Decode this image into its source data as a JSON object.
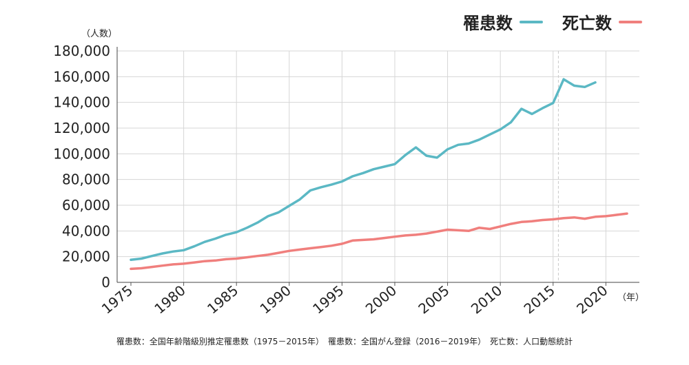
{
  "chart_data": {
    "type": "line",
    "ylim": [
      0,
      180000
    ],
    "xlim": [
      1975,
      2022
    ],
    "grid": true,
    "legend_position": "top-right",
    "y_unit": "（人数）",
    "x_unit": "（年）",
    "y_ticks": [
      {
        "value": 0,
        "label": "0"
      },
      {
        "value": 20000,
        "label": "20,000"
      },
      {
        "value": 40000,
        "label": "40,000"
      },
      {
        "value": 60000,
        "label": "60,000"
      },
      {
        "value": 80000,
        "label": "80,000"
      },
      {
        "value": 100000,
        "label": "100,000"
      },
      {
        "value": 120000,
        "label": "120,000"
      },
      {
        "value": 140000,
        "label": "140,000"
      },
      {
        "value": 160000,
        "label": "160,000"
      },
      {
        "value": 180000,
        "label": "180,000"
      }
    ],
    "x_ticks": [
      {
        "value": 1975,
        "label": "1975"
      },
      {
        "value": 1980,
        "label": "1980"
      },
      {
        "value": 1985,
        "label": "1985"
      },
      {
        "value": 1990,
        "label": "1990"
      },
      {
        "value": 1995,
        "label": "1995"
      },
      {
        "value": 2000,
        "label": "2000"
      },
      {
        "value": 2005,
        "label": "2005"
      },
      {
        "value": 2010,
        "label": "2010"
      },
      {
        "value": 2015,
        "label": "2015"
      },
      {
        "value": 2020,
        "label": "2020"
      }
    ],
    "reference_line_x": 2015.5,
    "series": [
      {
        "name": "罹患数",
        "color": "#5bb8c4",
        "x": [
          1975,
          1976,
          1977,
          1978,
          1979,
          1980,
          1981,
          1982,
          1983,
          1984,
          1985,
          1986,
          1987,
          1988,
          1989,
          1990,
          1991,
          1992,
          1993,
          1994,
          1995,
          1996,
          1997,
          1998,
          1999,
          2000,
          2001,
          2002,
          2003,
          2004,
          2005,
          2006,
          2007,
          2008,
          2009,
          2010,
          2011,
          2012,
          2013,
          2014,
          2015,
          2016,
          2017,
          2018,
          2019
        ],
        "values": [
          17500,
          18500,
          20500,
          22500,
          24000,
          25000,
          28000,
          31500,
          34000,
          37000,
          39000,
          42500,
          46500,
          51500,
          54500,
          59500,
          64500,
          71500,
          74000,
          76000,
          78500,
          82500,
          85000,
          88000,
          90000,
          92000,
          99000,
          105000,
          98500,
          97000,
          103500,
          107000,
          108000,
          111000,
          115000,
          119000,
          124500,
          135000,
          131000,
          135500,
          139500,
          158000,
          153000,
          152000,
          155500
        ]
      },
      {
        "name": "死亡数",
        "color": "#f07f7d",
        "x": [
          1975,
          1976,
          1977,
          1978,
          1979,
          1980,
          1981,
          1982,
          1983,
          1984,
          1985,
          1986,
          1987,
          1988,
          1989,
          1990,
          1991,
          1992,
          1993,
          1994,
          1995,
          1996,
          1997,
          1998,
          1999,
          2000,
          2001,
          2002,
          2003,
          2004,
          2005,
          2006,
          2007,
          2008,
          2009,
          2010,
          2011,
          2012,
          2013,
          2014,
          2015,
          2016,
          2017,
          2018,
          2019,
          2020,
          2021,
          2022
        ],
        "values": [
          10500,
          11000,
          12000,
          13000,
          14000,
          14500,
          15500,
          16500,
          17000,
          18000,
          18500,
          19500,
          20500,
          21500,
          23000,
          24500,
          25500,
          26500,
          27500,
          28500,
          30000,
          32500,
          33000,
          33500,
          34500,
          35500,
          36500,
          37000,
          38000,
          39500,
          41000,
          40500,
          40000,
          42500,
          41500,
          43500,
          45500,
          47000,
          47500,
          48500,
          49000,
          50000,
          50500,
          49500,
          51000,
          51500,
          52500,
          53500
        ]
      }
    ]
  },
  "source_note": "罹患数：全国年齢階級別推定罹患数（1975－2015年）　罹患数：全国がん登録（2016－2019年）　死亡数：人口動態統計"
}
